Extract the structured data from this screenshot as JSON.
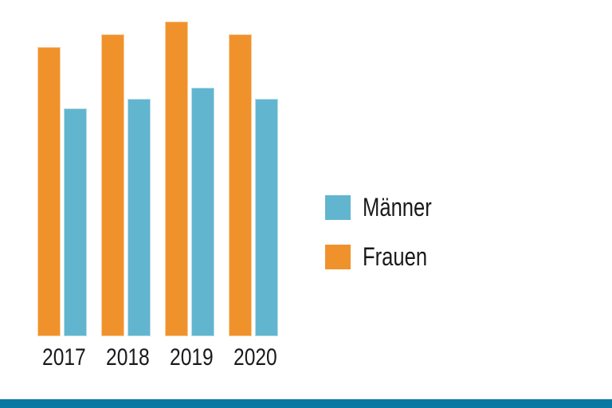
{
  "page": {
    "background": "#FFFFFF",
    "text_color": "#1A1A1A",
    "footer_bar_color": "#0879A2"
  },
  "chart_data": {
    "type": "bar",
    "categories": [
      "2017",
      "2018",
      "2019",
      "2020"
    ],
    "series": [
      {
        "name": "Frauen",
        "color": "#F0922B",
        "values": [
          91.9,
          95.9,
          100,
          95.9
        ]
      },
      {
        "name": "Männer",
        "color": "#62B5CE",
        "values": [
          72.4,
          75.4,
          79.0,
          75.4
        ]
      }
    ],
    "values_unit": "percent of tallest bar (no value axis shown)",
    "title": "",
    "xlabel": "",
    "ylabel": "",
    "ylim": [
      0,
      100
    ],
    "grid": false,
    "axes_visible": false,
    "legend": {
      "position": "right-middle",
      "entries": [
        "Männer",
        "Frauen"
      ]
    }
  }
}
